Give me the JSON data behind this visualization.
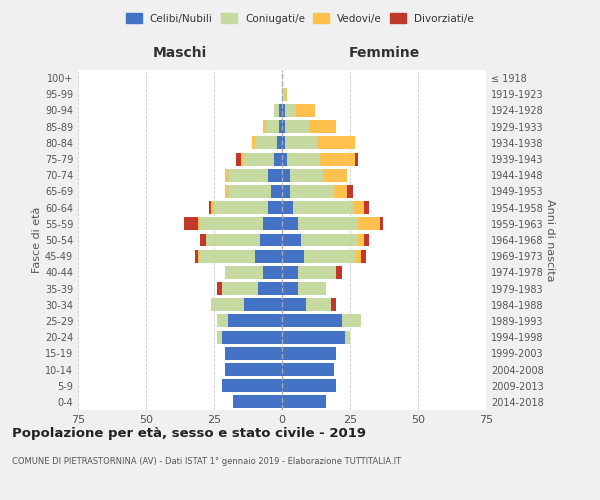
{
  "age_groups": [
    "0-4",
    "5-9",
    "10-14",
    "15-19",
    "20-24",
    "25-29",
    "30-34",
    "35-39",
    "40-44",
    "45-49",
    "50-54",
    "55-59",
    "60-64",
    "65-69",
    "70-74",
    "75-79",
    "80-84",
    "85-89",
    "90-94",
    "95-99",
    "100+"
  ],
  "birth_years": [
    "2014-2018",
    "2009-2013",
    "2004-2008",
    "1999-2003",
    "1994-1998",
    "1989-1993",
    "1984-1988",
    "1979-1983",
    "1974-1978",
    "1969-1973",
    "1964-1968",
    "1959-1963",
    "1954-1958",
    "1949-1953",
    "1944-1948",
    "1939-1943",
    "1934-1938",
    "1929-1933",
    "1924-1928",
    "1919-1923",
    "≤ 1918"
  ],
  "males": {
    "celibe": [
      18,
      22,
      21,
      21,
      22,
      20,
      14,
      9,
      7,
      10,
      8,
      7,
      5,
      4,
      5,
      3,
      2,
      1,
      1,
      0,
      0
    ],
    "coniugato": [
      0,
      0,
      0,
      0,
      2,
      4,
      12,
      13,
      14,
      20,
      20,
      23,
      20,
      16,
      15,
      11,
      8,
      5,
      2,
      0,
      0
    ],
    "vedovo": [
      0,
      0,
      0,
      0,
      0,
      0,
      0,
      0,
      0,
      1,
      0,
      1,
      1,
      1,
      1,
      1,
      1,
      1,
      0,
      0,
      0
    ],
    "divorziato": [
      0,
      0,
      0,
      0,
      0,
      0,
      0,
      2,
      0,
      1,
      2,
      5,
      1,
      0,
      0,
      2,
      0,
      0,
      0,
      0,
      0
    ]
  },
  "females": {
    "nubile": [
      16,
      20,
      19,
      20,
      23,
      22,
      9,
      6,
      6,
      8,
      7,
      6,
      4,
      3,
      3,
      2,
      1,
      1,
      1,
      0,
      0
    ],
    "coniugata": [
      0,
      0,
      0,
      0,
      2,
      7,
      9,
      10,
      14,
      19,
      21,
      22,
      22,
      16,
      12,
      12,
      12,
      9,
      4,
      1,
      0
    ],
    "vedova": [
      0,
      0,
      0,
      0,
      0,
      0,
      0,
      0,
      0,
      2,
      2,
      8,
      4,
      5,
      9,
      13,
      14,
      10,
      7,
      1,
      0
    ],
    "divorziata": [
      0,
      0,
      0,
      0,
      0,
      0,
      2,
      0,
      2,
      2,
      2,
      1,
      2,
      2,
      0,
      1,
      0,
      0,
      0,
      0,
      0
    ]
  },
  "colors": {
    "celibe": "#4472c4",
    "coniugato": "#c5d9a0",
    "vedovo": "#ffc04d",
    "divorziato": "#c0392b"
  },
  "title": "Popolazione per età, sesso e stato civile - 2019",
  "subtitle": "COMUNE DI PIETRASTORNINA (AV) - Dati ISTAT 1° gennaio 2019 - Elaborazione TUTTITALIA.IT",
  "xlabel_left": "Maschi",
  "xlabel_right": "Femmine",
  "ylabel_left": "Fasce di età",
  "ylabel_right": "Anni di nascita",
  "xlim": 75,
  "legend_labels": [
    "Celibi/Nubili",
    "Coniugati/e",
    "Vedovi/e",
    "Divorziati/e"
  ],
  "background_color": "#f0f0f0",
  "plot_bg": "#ffffff"
}
